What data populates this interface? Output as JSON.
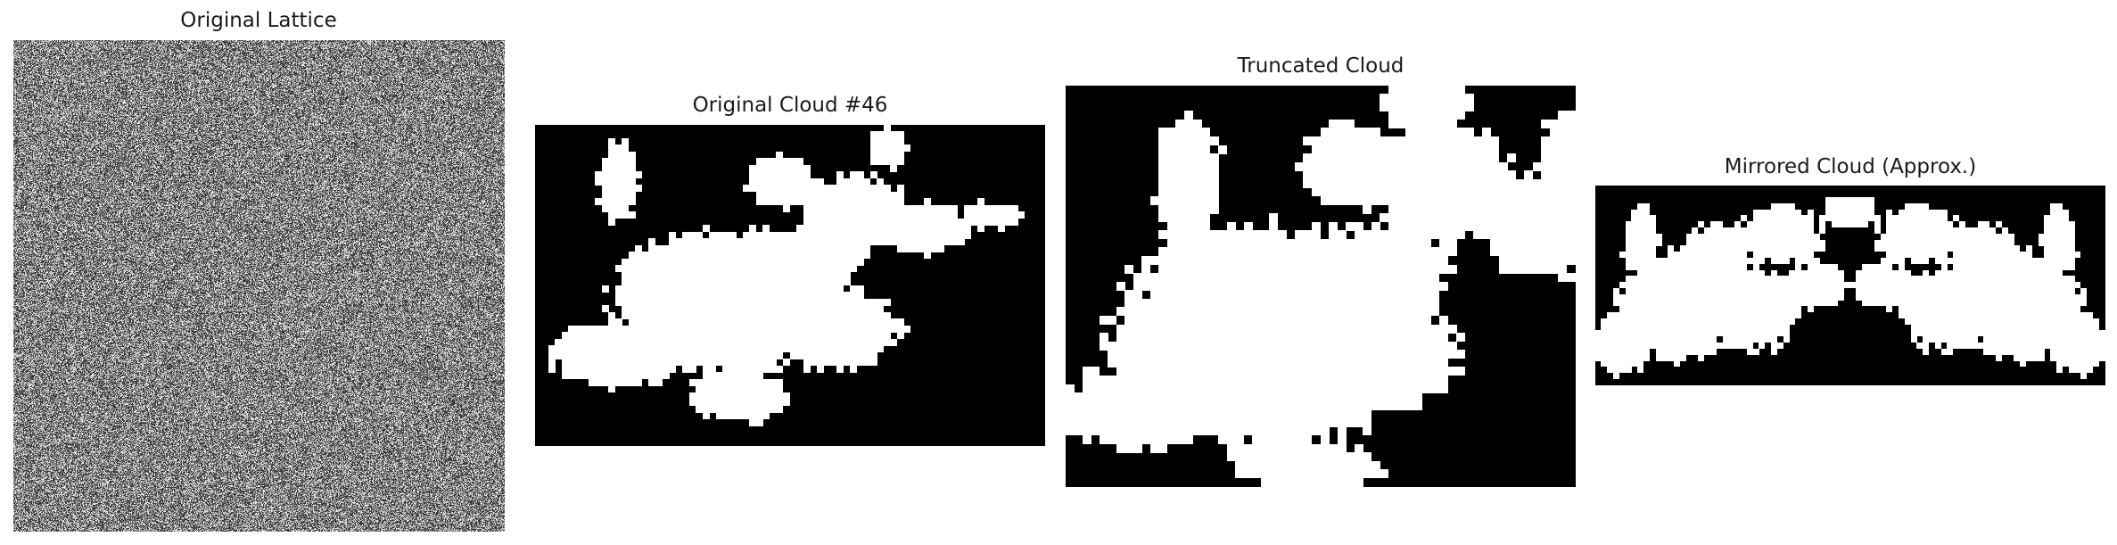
{
  "figure": {
    "panels": [
      {
        "title": "Original Lattice"
      },
      {
        "title": "Original Cloud #46"
      },
      {
        "title": "Truncated Cloud"
      },
      {
        "title": "Mirrored Cloud (Approx.)"
      }
    ]
  },
  "colors": {
    "cloud": "#ffffff",
    "background": "#000000",
    "noise_low": "#111111",
    "noise_high": "#e6e6e6"
  }
}
